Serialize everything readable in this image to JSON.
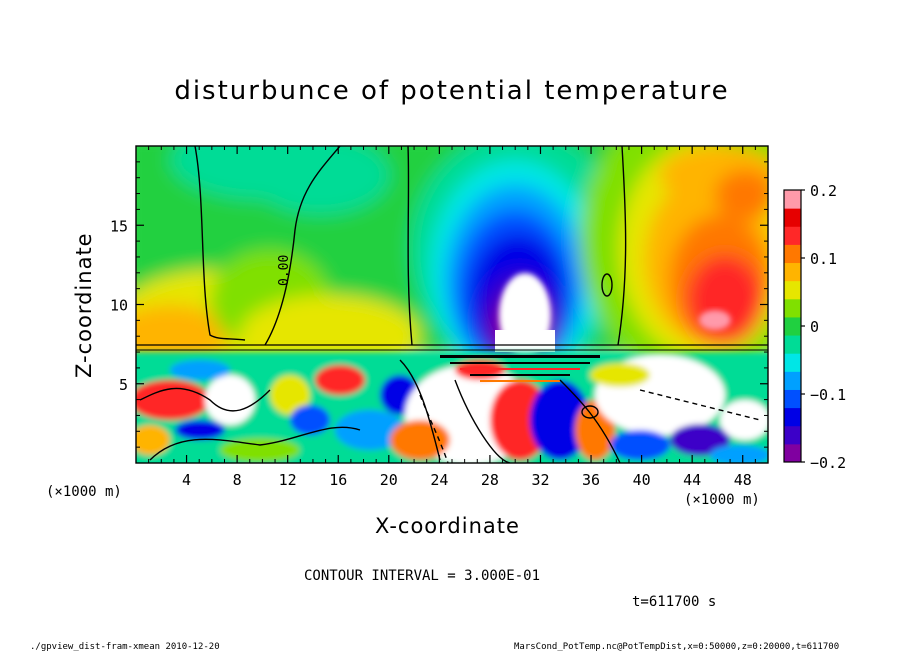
{
  "chart_data": {
    "type": "heatmap",
    "title": "disturbunce of potential temperature",
    "xlabel": "X-coordinate",
    "ylabel": "Z-coordinate",
    "x_unit": "(×1000 m)",
    "x_ticks": [
      4,
      8,
      12,
      16,
      20,
      24,
      28,
      32,
      36,
      40,
      44,
      48
    ],
    "y_ticks": [
      5,
      10,
      15
    ],
    "xlim": [
      0,
      50
    ],
    "ylim": [
      0,
      20
    ],
    "colorbar": {
      "range": [
        -0.2,
        0.2
      ],
      "tick_labels": [
        "0.2",
        "0.1",
        "0",
        "−0.1",
        "−0.2"
      ],
      "tick_values": [
        0.2,
        0.1,
        0,
        -0.1,
        -0.2
      ]
    },
    "contour_label": "0.00",
    "contour_interval": "CONTOUR INTERVAL = 3.000E-01",
    "time": "t=611700 s"
  },
  "footer": {
    "left": "./gpview_dist-fram-xmean  2010-12-20",
    "right": "MarsCond_PotTemp.nc@PotTempDist,x=0:50000,z=0:20000,t=611700"
  },
  "colors": {
    "scale": [
      "#8000a0",
      "#3c00c8",
      "#0000e6",
      "#0050ff",
      "#00a0ff",
      "#00e6e6",
      "#00dc96",
      "#20d040",
      "#80e000",
      "#e6e600",
      "#ffb400",
      "#ff7800",
      "#ff2828",
      "#e60000",
      "#ff9aaa"
    ]
  }
}
